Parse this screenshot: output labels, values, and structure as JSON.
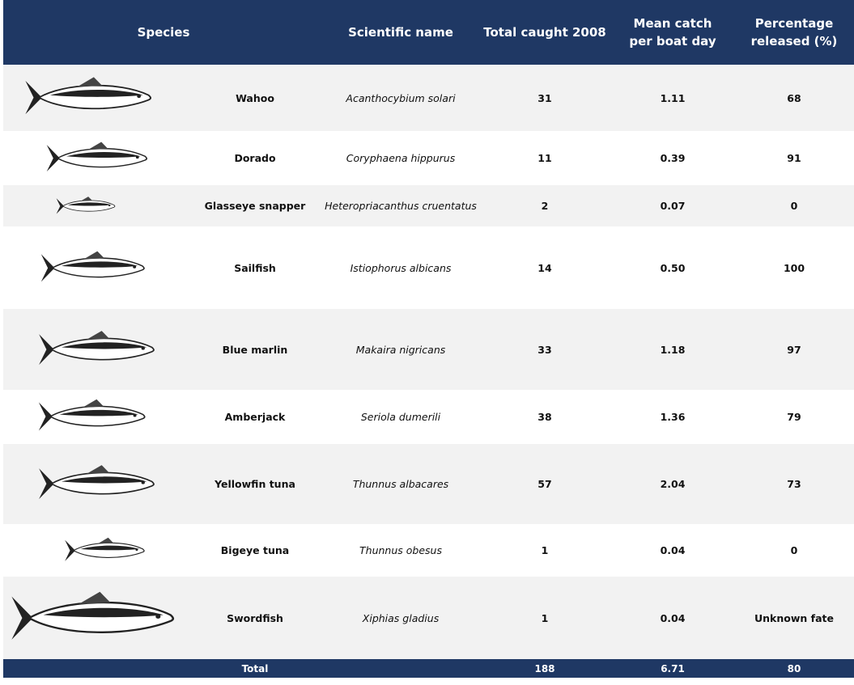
{
  "table": {
    "header": [
      "Species",
      "Scientific name",
      "Total caught 2008",
      "Mean catch per boat day",
      "Percentage released (%)"
    ],
    "rows": [
      [
        "Wahoo",
        "Acanthocybium solari",
        "31",
        "1.11",
        "68"
      ],
      [
        "Dorado",
        "Coryphaena hippurus",
        "11",
        "0.39",
        "91"
      ],
      [
        "Glasseye snapper",
        "Heteropriacanthus cruentatus",
        "2",
        "0.07",
        "0"
      ],
      [
        "Sailfish",
        "Istiophorus albicans",
        "14",
        "0.50",
        "100"
      ],
      [
        "Blue marlin",
        "Makaira nigricans",
        "33",
        "1.18",
        "97"
      ],
      [
        "Amberjack",
        "Seriola dumerili",
        "38",
        "1.36",
        "79"
      ],
      [
        "Yellowfin tuna",
        "Thunnus albacares",
        "57",
        "2.04",
        "73"
      ],
      [
        "Bigeye tuna",
        "Thunnus obesus",
        "1",
        "0.04",
        "0"
      ],
      [
        "Swordfish",
        "Xiphias gladius",
        "1",
        "0.04",
        "Unknown fate"
      ]
    ],
    "total": [
      "Total",
      "188",
      "6.71",
      "80"
    ]
  }
}
